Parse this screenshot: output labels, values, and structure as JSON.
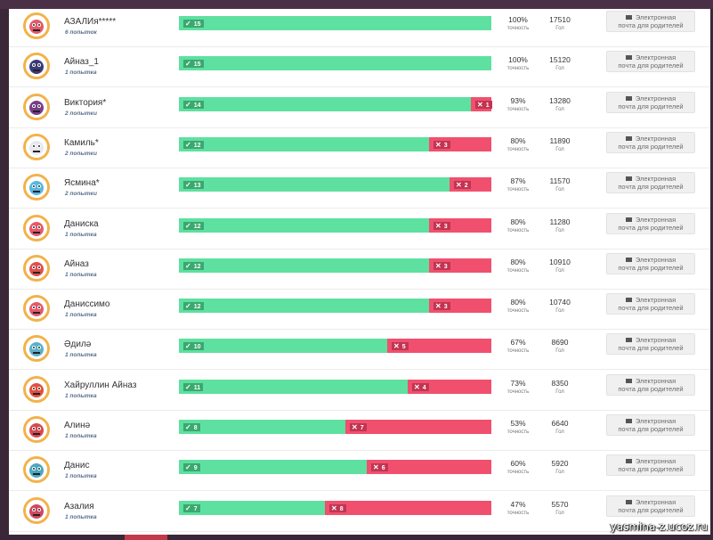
{
  "labels": {
    "accuracy": "точность",
    "goal": "Гол",
    "email_line1": "Электронная",
    "email_line2": "почта для родителей"
  },
  "colors": {
    "correct": "#5ee0a0",
    "wrong": "#f0506e",
    "avatar_ring": "#f2b24a"
  },
  "players": [
    {
      "name": "АЗАЛИя*****",
      "attempts": "6 попыток",
      "correct": "15",
      "wrong": "",
      "accuracy": "100%",
      "goal": "17510",
      "avatar_icon": "monster-avatar-icon"
    },
    {
      "name": "Айназ_1",
      "attempts": "1 попытка",
      "correct": "15",
      "wrong": "",
      "accuracy": "100%",
      "goal": "15120",
      "avatar_icon": "balloon-avatar-icon"
    },
    {
      "name": "Виктория*",
      "attempts": "2 попытки",
      "correct": "14",
      "wrong": "1",
      "accuracy": "93%",
      "goal": "13280",
      "avatar_icon": "monster-avatar-icon"
    },
    {
      "name": "Камиль*",
      "attempts": "2 попытки",
      "correct": "12",
      "wrong": "3",
      "accuracy": "80%",
      "goal": "11890",
      "avatar_icon": "skull-avatar-icon"
    },
    {
      "name": "Ясмина*",
      "attempts": "2 попытки",
      "correct": "13",
      "wrong": "2",
      "accuracy": "87%",
      "goal": "11570",
      "avatar_icon": "rainbow-avatar-icon"
    },
    {
      "name": "Даниска",
      "attempts": "1 попытка",
      "correct": "12",
      "wrong": "3",
      "accuracy": "80%",
      "goal": "11280",
      "avatar_icon": "monster-avatar-icon"
    },
    {
      "name": "Айназ",
      "attempts": "1 попытка",
      "correct": "12",
      "wrong": "3",
      "accuracy": "80%",
      "goal": "10910",
      "avatar_icon": "bird-avatar-icon"
    },
    {
      "name": "Даниссимо",
      "attempts": "1 попытка",
      "correct": "12",
      "wrong": "3",
      "accuracy": "80%",
      "goal": "10740",
      "avatar_icon": "monster-avatar-icon"
    },
    {
      "name": "Әдилә",
      "attempts": "1 попытка",
      "correct": "10",
      "wrong": "5",
      "accuracy": "67%",
      "goal": "8690",
      "avatar_icon": "fish-avatar-icon"
    },
    {
      "name": "Хайруллин Айназ",
      "attempts": "1 попытка",
      "correct": "11",
      "wrong": "4",
      "accuracy": "73%",
      "goal": "8350",
      "avatar_icon": "dragon-avatar-icon"
    },
    {
      "name": "Алинә",
      "attempts": "1 попытка",
      "correct": "8",
      "wrong": "7",
      "accuracy": "53%",
      "goal": "6640",
      "avatar_icon": "rocket-avatar-icon"
    },
    {
      "name": "Данис",
      "attempts": "1 попытка",
      "correct": "9",
      "wrong": "6",
      "accuracy": "60%",
      "goal": "5920",
      "avatar_icon": "shark-avatar-icon"
    },
    {
      "name": "Азалия",
      "attempts": "1 попытка",
      "correct": "7",
      "wrong": "8",
      "accuracy": "47%",
      "goal": "5570",
      "avatar_icon": "dragon-avatar-icon"
    }
  ],
  "watermark": "yasmina-z.ucoz.ru"
}
